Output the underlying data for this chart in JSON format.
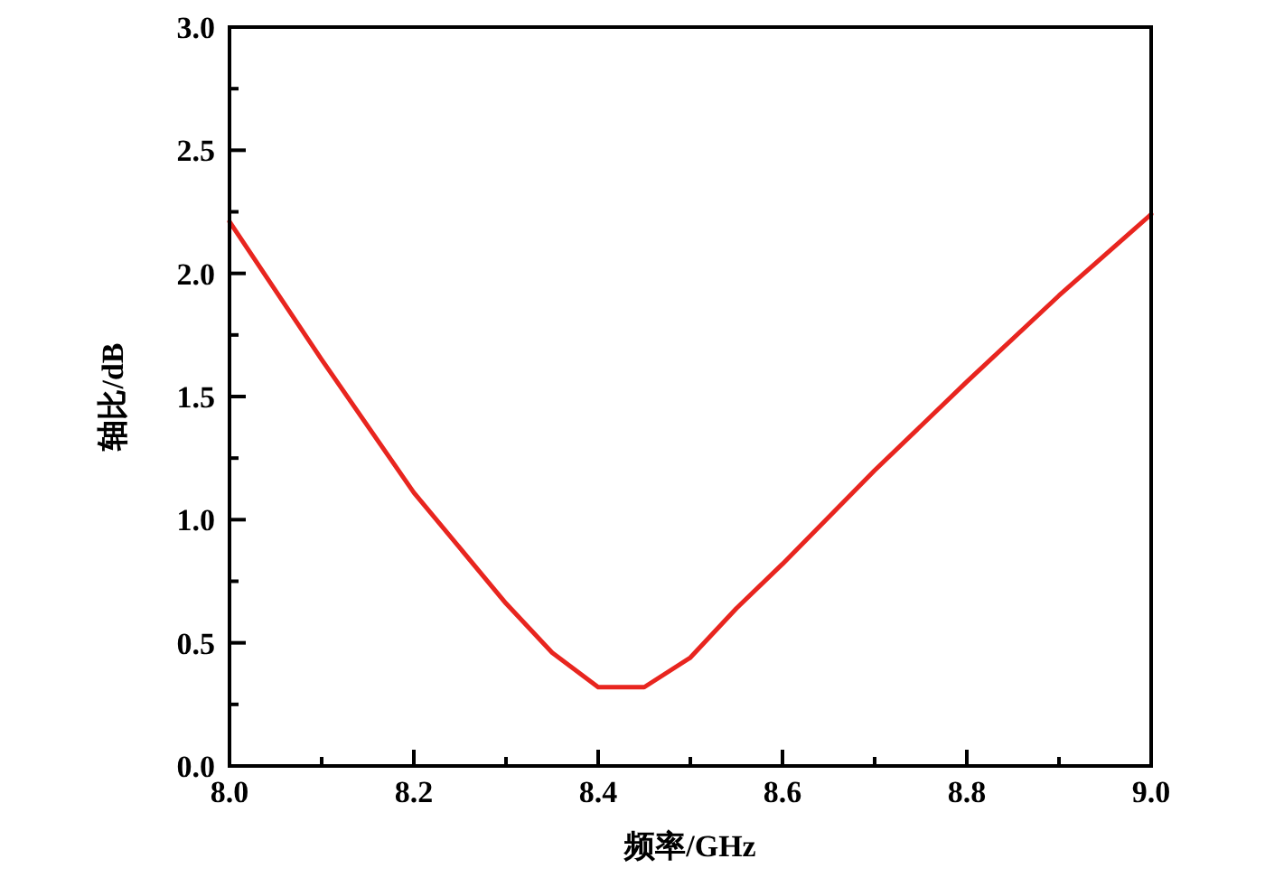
{
  "chart_data": {
    "type": "line",
    "xlabel": "频率/GHz",
    "ylabel": "轴比/dB",
    "x": [
      8.0,
      8.1,
      8.2,
      8.3,
      8.35,
      8.4,
      8.45,
      8.5,
      8.55,
      8.6,
      8.7,
      8.8,
      8.9,
      9.0
    ],
    "series": [
      {
        "color": "#e8251f",
        "values": [
          2.21,
          1.65,
          1.11,
          0.66,
          0.46,
          0.32,
          0.32,
          0.44,
          0.64,
          0.82,
          1.2,
          1.56,
          1.91,
          2.24
        ]
      }
    ],
    "xlim": [
      8.0,
      9.0
    ],
    "xticks": [
      {
        "value": 8.0,
        "label": "8.0"
      },
      {
        "value": 8.1,
        "label": null
      },
      {
        "value": 8.2,
        "label": "8.2"
      },
      {
        "value": 8.3,
        "label": null
      },
      {
        "value": 8.4,
        "label": "8.4"
      },
      {
        "value": 8.5,
        "label": null
      },
      {
        "value": 8.6,
        "label": "8.6"
      },
      {
        "value": 8.7,
        "label": null
      },
      {
        "value": 8.8,
        "label": "8.8"
      },
      {
        "value": 8.9,
        "label": null
      },
      {
        "value": 9.0,
        "label": "9.0"
      }
    ],
    "ylim": [
      0,
      3.0
    ],
    "yticks": [
      {
        "value": 0,
        "label": "0.0"
      },
      {
        "value": 0.25,
        "label": null
      },
      {
        "value": 0.5,
        "label": "0.5"
      },
      {
        "value": 0.75,
        "label": null
      },
      {
        "value": 1.0,
        "label": "1.0"
      },
      {
        "value": 1.25,
        "label": null
      },
      {
        "value": 1.5,
        "label": "1.5"
      },
      {
        "value": 1.75,
        "label": null
      },
      {
        "value": 2.0,
        "label": "2.0"
      },
      {
        "value": 2.25,
        "label": null
      },
      {
        "value": 2.5,
        "label": "2.5"
      },
      {
        "value": 2.75,
        "label": null
      },
      {
        "value": 3.0,
        "label": "3.0"
      }
    ],
    "grid": false,
    "marker": "none",
    "line_style": "solid"
  }
}
